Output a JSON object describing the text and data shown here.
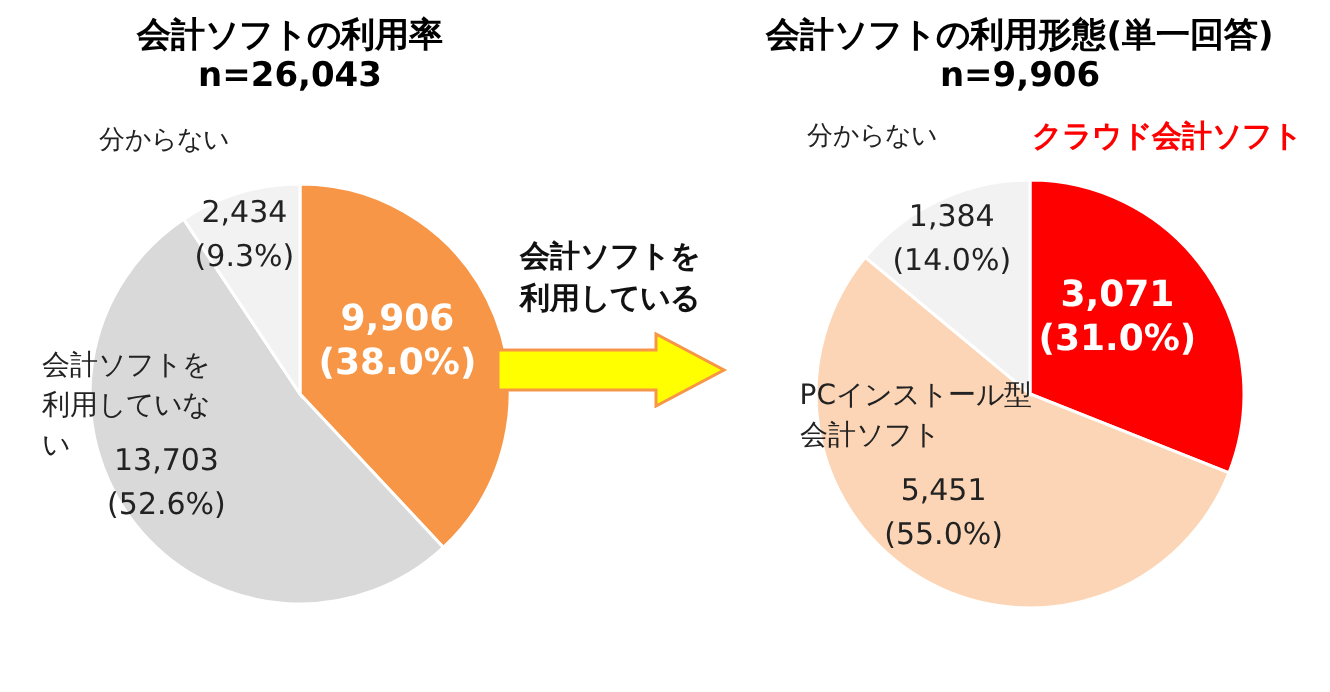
{
  "chart_data": [
    {
      "type": "pie",
      "title": "会計ソフトの利用率",
      "subtitle": "n=26,043",
      "categories": [
        "会計ソフトを利用している",
        "会計ソフトを利用していない",
        "分からない"
      ],
      "values": [
        9906,
        13703,
        2434
      ],
      "value_labels": [
        "9,906 (38.0%)",
        "13,703 (52.6%)",
        "2,434 (9.3%)"
      ],
      "colors": [
        "#f79646",
        "#d9d9d9",
        "#f2f2f2"
      ]
    },
    {
      "type": "pie",
      "title": "会計ソフトの利用形態(単一回答)",
      "subtitle": "n=9,906",
      "categories": [
        "クラウド会計ソフト",
        "PCインストール型会計ソフト",
        "分からない"
      ],
      "values": [
        3071,
        5451,
        1384
      ],
      "value_labels": [
        "3,071 (31.0%)",
        "5,451 (55.0%)",
        "1,384 (14.0%)"
      ],
      "colors": [
        "#ff0000",
        "#fbd5b5",
        "#f2f2f2"
      ]
    }
  ]
}
